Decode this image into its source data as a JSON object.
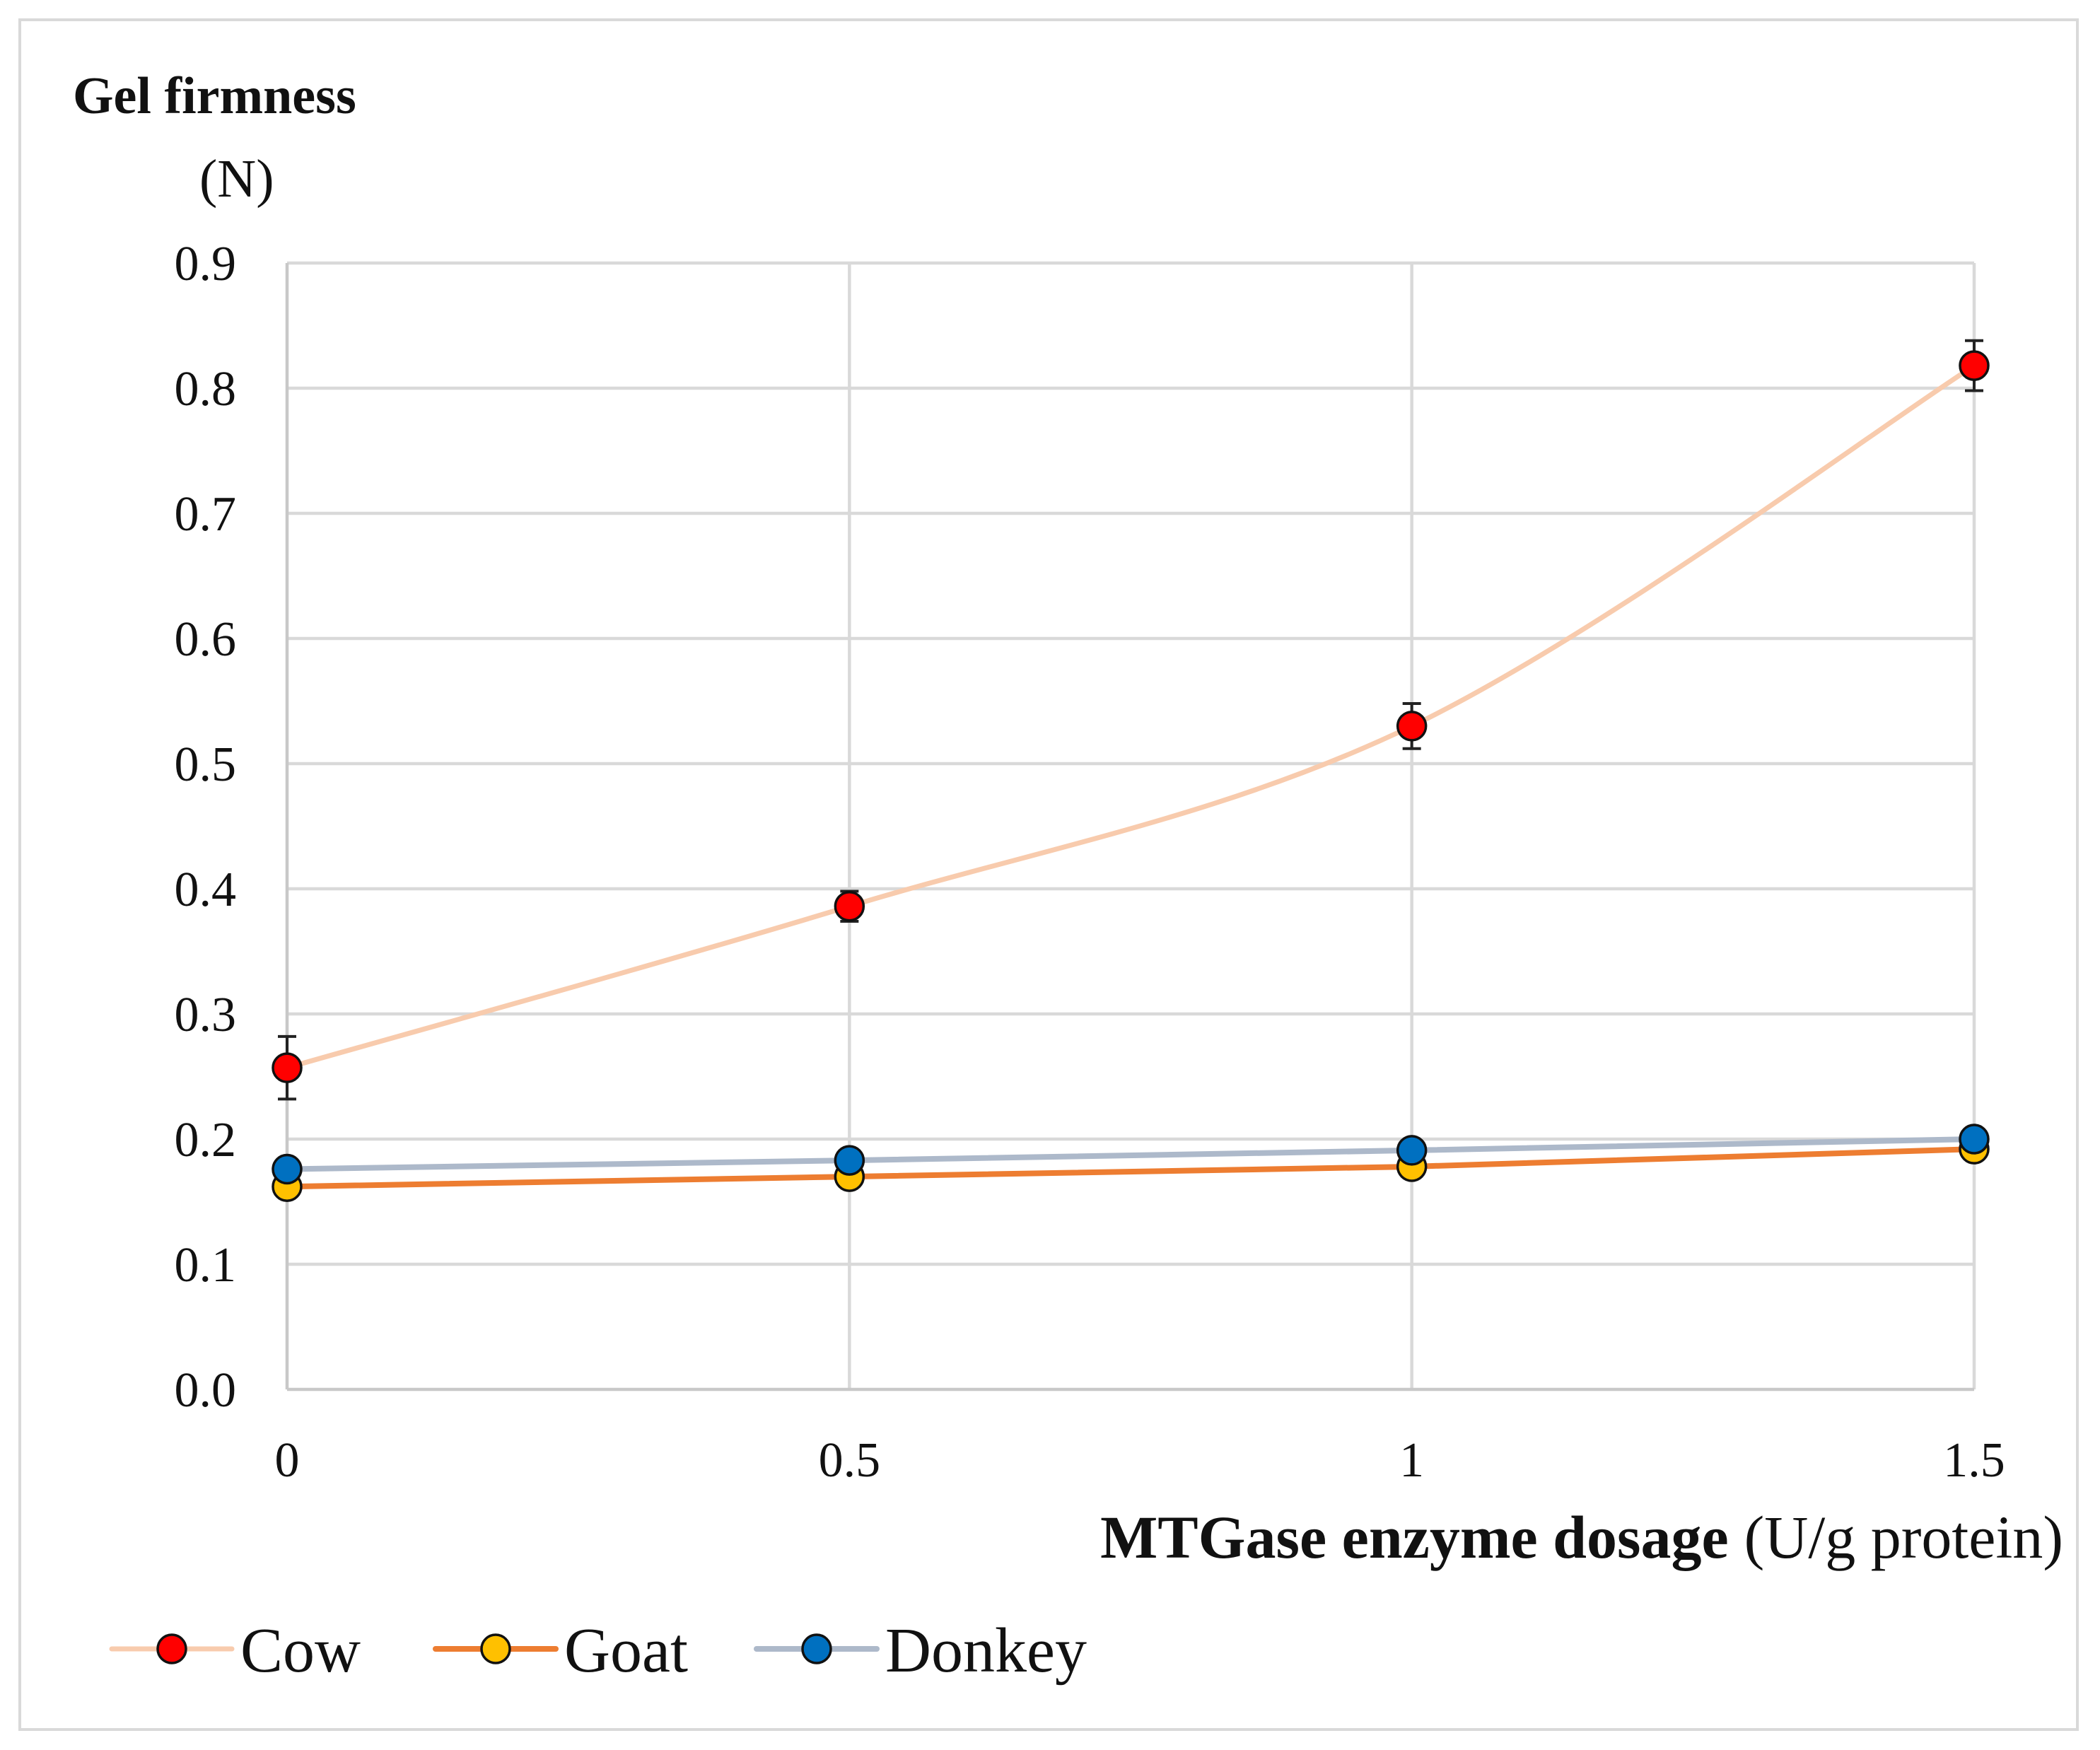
{
  "chart_data": {
    "type": "line",
    "title": "",
    "ylabel": "Gel firmness",
    "ylabel_unit": "(N)",
    "xlabel": "MTGase enzyme dosage",
    "xlabel_unit": "(U/g protein)",
    "x": [
      0,
      0.5,
      1,
      1.5
    ],
    "x_tick_labels": [
      "0",
      "0.5",
      "1",
      "1.5"
    ],
    "xlim": [
      0,
      1.5
    ],
    "ylim": [
      0,
      0.9
    ],
    "y_ticks": [
      0.0,
      0.1,
      0.2,
      0.3,
      0.4,
      0.5,
      0.6,
      0.7,
      0.8,
      0.9
    ],
    "y_tick_labels": [
      "0.0",
      "0.1",
      "0.2",
      "0.3",
      "0.4",
      "0.5",
      "0.6",
      "0.7",
      "0.8",
      "0.9"
    ],
    "grid": true,
    "legend_position": "bottom-left",
    "series": [
      {
        "name": "Cow",
        "values": [
          0.257,
          0.386,
          0.53,
          0.818
        ],
        "errors": [
          0.025,
          0.012,
          0.018,
          0.02
        ],
        "line_color": "#f8cbad",
        "marker_color": "#ff0000",
        "smooth": true
      },
      {
        "name": "Goat",
        "values": [
          0.162,
          0.17,
          0.178,
          0.192
        ],
        "errors": [
          0,
          0,
          0,
          0
        ],
        "line_color": "#ed7d31",
        "marker_color": "#ffc000",
        "smooth": false
      },
      {
        "name": "Donkey",
        "values": [
          0.176,
          0.183,
          0.191,
          0.2
        ],
        "errors": [
          0,
          0,
          0,
          0
        ],
        "line_color": "#adb9ca",
        "marker_color": "#0070c0",
        "smooth": false
      }
    ]
  }
}
